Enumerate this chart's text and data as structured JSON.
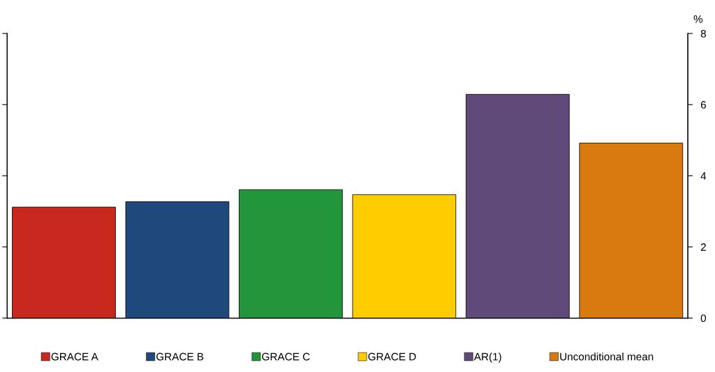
{
  "chart_data": {
    "type": "bar",
    "ylabel": "%",
    "categories": [
      null,
      null,
      null,
      null,
      null,
      null
    ],
    "series": [
      {
        "name": "GRACE A",
        "color": "#c8281e",
        "values": [
          3.12,
          null,
          null,
          null,
          null,
          null
        ]
      },
      {
        "name": "GRACE B",
        "color": "#1f497d",
        "values": [
          null,
          3.27,
          null,
          null,
          null,
          null
        ]
      },
      {
        "name": "GRACE C",
        "color": "#23963c",
        "values": [
          null,
          null,
          3.61,
          null,
          null,
          null
        ]
      },
      {
        "name": "GRACE D",
        "color": "#ffcc00",
        "values": [
          null,
          null,
          null,
          3.47,
          null,
          null
        ]
      },
      {
        "name": "AR(1)",
        "color": "#5f4a7a",
        "values": [
          null,
          null,
          null,
          null,
          6.29,
          null
        ]
      },
      {
        "name": "Unconditional mean",
        "color": "#d97a10",
        "values": [
          null,
          null,
          null,
          null,
          null,
          4.92
        ]
      }
    ],
    "ylim": [
      0,
      8
    ],
    "yticks": [
      0,
      2,
      4,
      6,
      8
    ],
    "grid": false,
    "legend": "bottom",
    "tick_labels": "y"
  }
}
